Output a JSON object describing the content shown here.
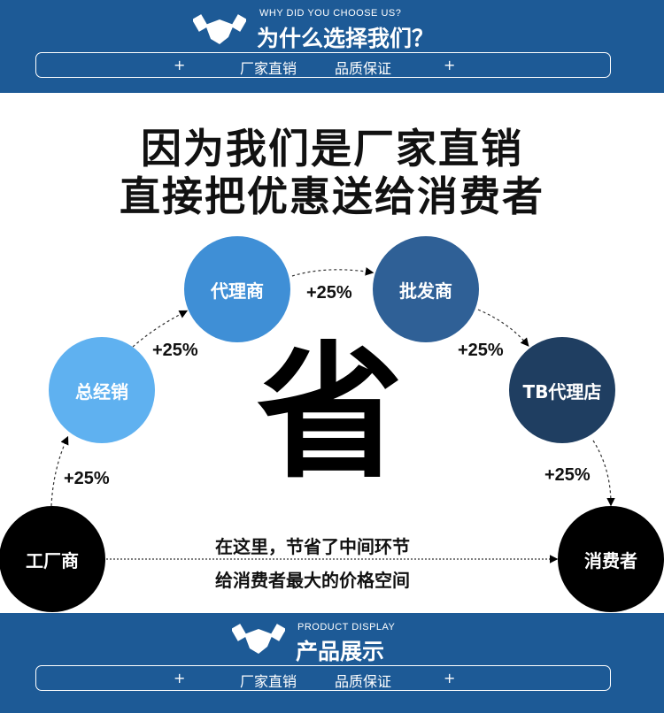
{
  "header": {
    "subtitle_en": "WHY DID YOU CHOOSE US?",
    "title": "为什么选择我们？",
    "bar": {
      "plus": "+",
      "item1": "厂家直销",
      "item2": "品质保证"
    },
    "icon": "handshake-icon"
  },
  "headline": {
    "line1": "因为我们是厂家直销",
    "line2": "直接把优惠送给消费者"
  },
  "chain": [
    {
      "label": "工厂商",
      "color": "#000000"
    },
    {
      "label": "总经销",
      "color": "#5fb1f0"
    },
    {
      "label": "代理商",
      "color": "#3f8fd6"
    },
    {
      "label": "批发商",
      "color": "#2f6096"
    },
    {
      "label": "TB代理店",
      "color": "#1f3e61"
    },
    {
      "label": "消费者",
      "color": "#000000"
    }
  ],
  "markups": [
    "+25%",
    "+25%",
    "+25%",
    "+25%",
    "+25%"
  ],
  "center_char": "省",
  "message": {
    "line1": "在这里，节省了中间环节",
    "line2": "给消费者最大的价格空间"
  },
  "footer": {
    "subtitle_en": "PRODUCT DISPLAY",
    "title": "产品展示",
    "bar": {
      "plus": "+",
      "item1": "厂家直销",
      "item2": "品质保证"
    },
    "icon": "handshake-icon"
  },
  "colors": {
    "brand_blue": "#1d5a96"
  }
}
